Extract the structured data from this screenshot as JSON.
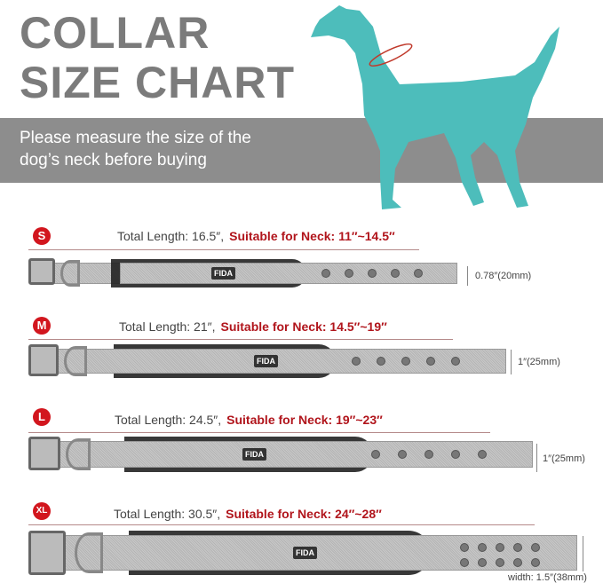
{
  "title": {
    "line1": "COLLAR",
    "line2": "SIZE CHART"
  },
  "subtitle": {
    "line1": "Please measure the size of the",
    "line2": "dog’s neck before buying"
  },
  "colors": {
    "dog": "#4dbdbb",
    "band": "#8d8d8d",
    "accent": "#d2161e",
    "title": "#7b7b7b"
  },
  "brand": "FIDA",
  "sizes": [
    {
      "label": "S",
      "total": "Total Length: 16.5″,",
      "neck": "Suitable for Neck: 11″~14.5″",
      "width": "0.78″(20mm)"
    },
    {
      "label": "M",
      "total": "Total Length: 21″,",
      "neck": "Suitable for Neck: 14.5″~19″",
      "width": "1″(25mm)"
    },
    {
      "label": "L",
      "total": "Total Length: 24.5″,",
      "neck": "Suitable for Neck: 19″~23″",
      "width": "1″(25mm)"
    },
    {
      "label": "XL",
      "total": "Total Length: 30.5″,",
      "neck": "Suitable for Neck: 24″~28″",
      "width": "width: 1.5″(38mm)"
    }
  ]
}
